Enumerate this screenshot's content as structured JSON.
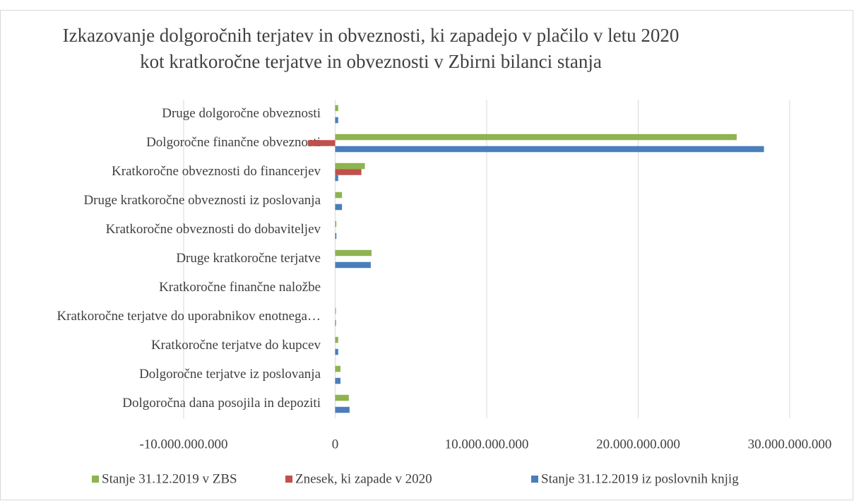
{
  "chart_data": {
    "type": "hbar",
    "title": [
      "Izkazovanje dolgoročnih terjatev in obveznosti, ki zapadejo v plačilo v letu 2020",
      "kot kratkoročne terjatve in obveznosti v Zbirni bilanci stanja"
    ],
    "categories": [
      "Druge dolgoročne obveznosti",
      "Dolgoročne finančne obveznosti",
      "Kratkoročne obveznosti do financerjev",
      "Druge kratkoročne obveznosti iz poslovanja",
      "Kratkoročne obveznosti do dobaviteljev",
      "Druge kratkoročne terjatve",
      "Kratkoročne finančne naložbe",
      "Kratkoročne terjatve do uporabnikov enotnega…",
      "Kratkoročne terjatve do kupcev",
      "Dolgoročne terjatve iz poslovanja",
      "Dolgoročna dana posojila in depoziti"
    ],
    "series": [
      {
        "name": "Stanje 31.12.2019 v ZBS",
        "color": "#8fb34f",
        "values": [
          200000000,
          26500000000,
          1960000000,
          450000000,
          80000000,
          2400000000,
          0,
          50000000,
          200000000,
          350000000,
          900000000
        ]
      },
      {
        "name": "Znesek, ki zapade v 2020",
        "color": "#c0504d",
        "values": [
          0,
          -1800000000,
          1730000000,
          0,
          0,
          0,
          0,
          0,
          0,
          0,
          0
        ]
      },
      {
        "name": "Stanje 31.12.2019 iz poslovnih knjig",
        "color": "#4a7ebb",
        "values": [
          200000000,
          28300000000,
          200000000,
          450000000,
          80000000,
          2350000000,
          0,
          50000000,
          200000000,
          350000000,
          950000000
        ]
      }
    ],
    "xlim": [
      -10000000000,
      30000000000
    ],
    "xticks": [
      {
        "value": -10000000000,
        "label": "-10.000.000.000"
      },
      0,
      {
        "value": 10000000000,
        "label": "10.000.000.000"
      },
      {
        "value": 20000000000,
        "label": "20.000.000.000"
      },
      {
        "value": 30000000000,
        "label": "30.000.000.000"
      }
    ],
    "grid": true,
    "legend": "bottom"
  }
}
